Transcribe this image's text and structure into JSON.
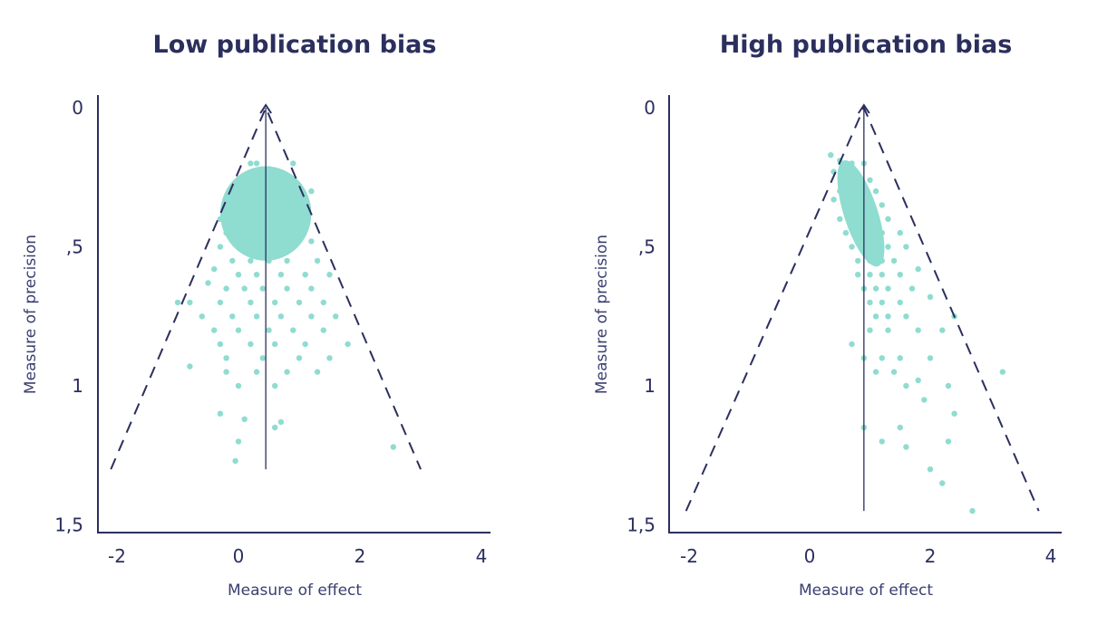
{
  "colors": {
    "point": "#8fdcd0",
    "ink": "#2b2f5e"
  },
  "chart_data": [
    {
      "type": "scatter",
      "title": "Low publication bias",
      "xlabel": "Measure of effect",
      "ylabel": "Measure of precision",
      "xlim": [
        -2.2,
        4.2
      ],
      "ylim": [
        0,
        1.5
      ],
      "y_inverted": true,
      "xticks": [
        -2,
        0,
        2,
        4
      ],
      "xtick_labels": [
        "-2",
        "0",
        "2",
        "4"
      ],
      "yticks": [
        0,
        0.5,
        1,
        1.5
      ],
      "ytick_labels": [
        "0",
        ",5",
        "1",
        "1,5"
      ],
      "center_line": {
        "x": 0.45,
        "y_from": 0,
        "y_to": 1.3
      },
      "funnel": {
        "apex": [
          0.45,
          0
        ],
        "left": [
          -2.1,
          1.3
        ],
        "right": [
          3.0,
          1.3
        ]
      },
      "series": [
        {
          "values": [
            [
              0.2,
              0.2
            ],
            [
              0.3,
              0.2
            ],
            [
              0.5,
              0.22
            ],
            [
              0.1,
              0.25
            ],
            [
              0.6,
              0.25
            ],
            [
              0.8,
              0.25
            ],
            [
              0.9,
              0.2
            ],
            [
              -0.1,
              0.3
            ],
            [
              0.0,
              0.28
            ],
            [
              0.4,
              0.3
            ],
            [
              0.7,
              0.3
            ],
            [
              1.0,
              0.28
            ],
            [
              -0.2,
              0.35
            ],
            [
              0.1,
              0.35
            ],
            [
              0.3,
              0.35
            ],
            [
              0.6,
              0.35
            ],
            [
              0.9,
              0.33
            ],
            [
              1.2,
              0.3
            ],
            [
              -0.3,
              0.4
            ],
            [
              0.0,
              0.4
            ],
            [
              0.2,
              0.4
            ],
            [
              0.5,
              0.4
            ],
            [
              0.8,
              0.4
            ],
            [
              1.1,
              0.38
            ],
            [
              -0.2,
              0.45
            ],
            [
              0.1,
              0.45
            ],
            [
              0.4,
              0.45
            ],
            [
              0.7,
              0.45
            ],
            [
              1.0,
              0.45
            ],
            [
              -0.3,
              0.5
            ],
            [
              0.0,
              0.5
            ],
            [
              0.3,
              0.5
            ],
            [
              0.6,
              0.5
            ],
            [
              0.9,
              0.5
            ],
            [
              1.2,
              0.48
            ],
            [
              -0.1,
              0.55
            ],
            [
              0.2,
              0.55
            ],
            [
              0.5,
              0.55
            ],
            [
              0.8,
              0.55
            ],
            [
              1.3,
              0.55
            ],
            [
              -0.4,
              0.58
            ],
            [
              0.0,
              0.6
            ],
            [
              0.3,
              0.6
            ],
            [
              0.7,
              0.6
            ],
            [
              1.1,
              0.6
            ],
            [
              1.5,
              0.6
            ],
            [
              -0.5,
              0.63
            ],
            [
              -0.2,
              0.65
            ],
            [
              0.1,
              0.65
            ],
            [
              0.4,
              0.65
            ],
            [
              0.8,
              0.65
            ],
            [
              1.2,
              0.65
            ],
            [
              -0.8,
              0.7
            ],
            [
              -0.3,
              0.7
            ],
            [
              0.2,
              0.7
            ],
            [
              0.6,
              0.7
            ],
            [
              1.0,
              0.7
            ],
            [
              1.4,
              0.7
            ],
            [
              -1.0,
              0.7
            ],
            [
              -0.6,
              0.75
            ],
            [
              -0.1,
              0.75
            ],
            [
              0.3,
              0.75
            ],
            [
              0.7,
              0.75
            ],
            [
              1.2,
              0.75
            ],
            [
              1.6,
              0.75
            ],
            [
              -0.4,
              0.8
            ],
            [
              0.0,
              0.8
            ],
            [
              0.5,
              0.8
            ],
            [
              0.9,
              0.8
            ],
            [
              1.4,
              0.8
            ],
            [
              1.8,
              0.85
            ],
            [
              -0.3,
              0.85
            ],
            [
              0.2,
              0.85
            ],
            [
              0.6,
              0.85
            ],
            [
              1.1,
              0.85
            ],
            [
              -0.8,
              0.93
            ],
            [
              -0.2,
              0.9
            ],
            [
              0.4,
              0.9
            ],
            [
              1.0,
              0.9
            ],
            [
              1.5,
              0.9
            ],
            [
              -0.2,
              0.95
            ],
            [
              0.3,
              0.95
            ],
            [
              0.8,
              0.95
            ],
            [
              1.3,
              0.95
            ],
            [
              0.0,
              1.0
            ],
            [
              0.6,
              1.0
            ],
            [
              -0.3,
              1.1
            ],
            [
              0.1,
              1.12
            ],
            [
              0.7,
              1.13
            ],
            [
              0.0,
              1.2
            ],
            [
              2.55,
              1.22
            ],
            [
              -0.05,
              1.27
            ],
            [
              0.6,
              1.15
            ]
          ]
        }
      ]
    },
    {
      "type": "scatter",
      "title": "High publication bias",
      "xlabel": "Measure of effect",
      "ylabel": "Measure of precision",
      "xlim": [
        -2.2,
        4.2
      ],
      "ylim": [
        0,
        1.5
      ],
      "y_inverted": true,
      "xticks": [
        -2,
        0,
        2,
        4
      ],
      "xtick_labels": [
        "-2",
        "0",
        "2",
        "4"
      ],
      "yticks": [
        0,
        0.5,
        1,
        1.5
      ],
      "ytick_labels": [
        "0",
        ",5",
        "1",
        "1,5"
      ],
      "center_line": {
        "x": 0.9,
        "y_from": 0,
        "y_to": 1.45
      },
      "funnel": {
        "apex": [
          0.9,
          0
        ],
        "left": [
          -2.05,
          1.45
        ],
        "right": [
          3.8,
          1.45
        ]
      },
      "series": [
        {
          "values": [
            [
              0.35,
              0.17
            ],
            [
              0.5,
              0.19
            ],
            [
              0.7,
              0.2
            ],
            [
              0.9,
              0.2
            ],
            [
              0.4,
              0.23
            ],
            [
              0.6,
              0.25
            ],
            [
              0.8,
              0.25
            ],
            [
              1.0,
              0.26
            ],
            [
              0.5,
              0.3
            ],
            [
              0.7,
              0.3
            ],
            [
              0.9,
              0.3
            ],
            [
              1.1,
              0.3
            ],
            [
              0.4,
              0.33
            ],
            [
              0.6,
              0.35
            ],
            [
              0.8,
              0.35
            ],
            [
              1.0,
              0.36
            ],
            [
              1.2,
              0.35
            ],
            [
              0.5,
              0.4
            ],
            [
              0.7,
              0.4
            ],
            [
              0.9,
              0.4
            ],
            [
              1.1,
              0.4
            ],
            [
              1.3,
              0.4
            ],
            [
              0.6,
              0.45
            ],
            [
              0.8,
              0.45
            ],
            [
              1.0,
              0.45
            ],
            [
              1.2,
              0.45
            ],
            [
              1.5,
              0.45
            ],
            [
              0.7,
              0.5
            ],
            [
              0.9,
              0.5
            ],
            [
              1.1,
              0.5
            ],
            [
              1.3,
              0.5
            ],
            [
              1.6,
              0.5
            ],
            [
              0.8,
              0.55
            ],
            [
              1.0,
              0.55
            ],
            [
              1.2,
              0.55
            ],
            [
              1.4,
              0.55
            ],
            [
              0.8,
              0.6
            ],
            [
              1.0,
              0.6
            ],
            [
              1.2,
              0.6
            ],
            [
              1.5,
              0.6
            ],
            [
              1.8,
              0.58
            ],
            [
              0.9,
              0.65
            ],
            [
              1.1,
              0.65
            ],
            [
              1.3,
              0.65
            ],
            [
              1.7,
              0.65
            ],
            [
              1.0,
              0.7
            ],
            [
              1.2,
              0.7
            ],
            [
              1.5,
              0.7
            ],
            [
              2.0,
              0.68
            ],
            [
              1.1,
              0.75
            ],
            [
              1.3,
              0.75
            ],
            [
              1.6,
              0.75
            ],
            [
              2.4,
              0.75
            ],
            [
              0.7,
              0.85
            ],
            [
              1.0,
              0.8
            ],
            [
              1.3,
              0.8
            ],
            [
              1.8,
              0.8
            ],
            [
              2.2,
              0.8
            ],
            [
              0.9,
              0.9
            ],
            [
              1.2,
              0.9
            ],
            [
              1.5,
              0.9
            ],
            [
              2.0,
              0.9
            ],
            [
              1.1,
              0.95
            ],
            [
              1.4,
              0.95
            ],
            [
              1.8,
              0.98
            ],
            [
              3.2,
              0.95
            ],
            [
              1.6,
              1.0
            ],
            [
              2.3,
              1.0
            ],
            [
              1.9,
              1.05
            ],
            [
              2.4,
              1.1
            ],
            [
              0.9,
              1.15
            ],
            [
              1.5,
              1.15
            ],
            [
              2.3,
              1.2
            ],
            [
              1.2,
              1.2
            ],
            [
              1.6,
              1.22
            ],
            [
              2.0,
              1.3
            ],
            [
              2.2,
              1.35
            ],
            [
              2.7,
              1.45
            ]
          ]
        }
      ]
    }
  ]
}
